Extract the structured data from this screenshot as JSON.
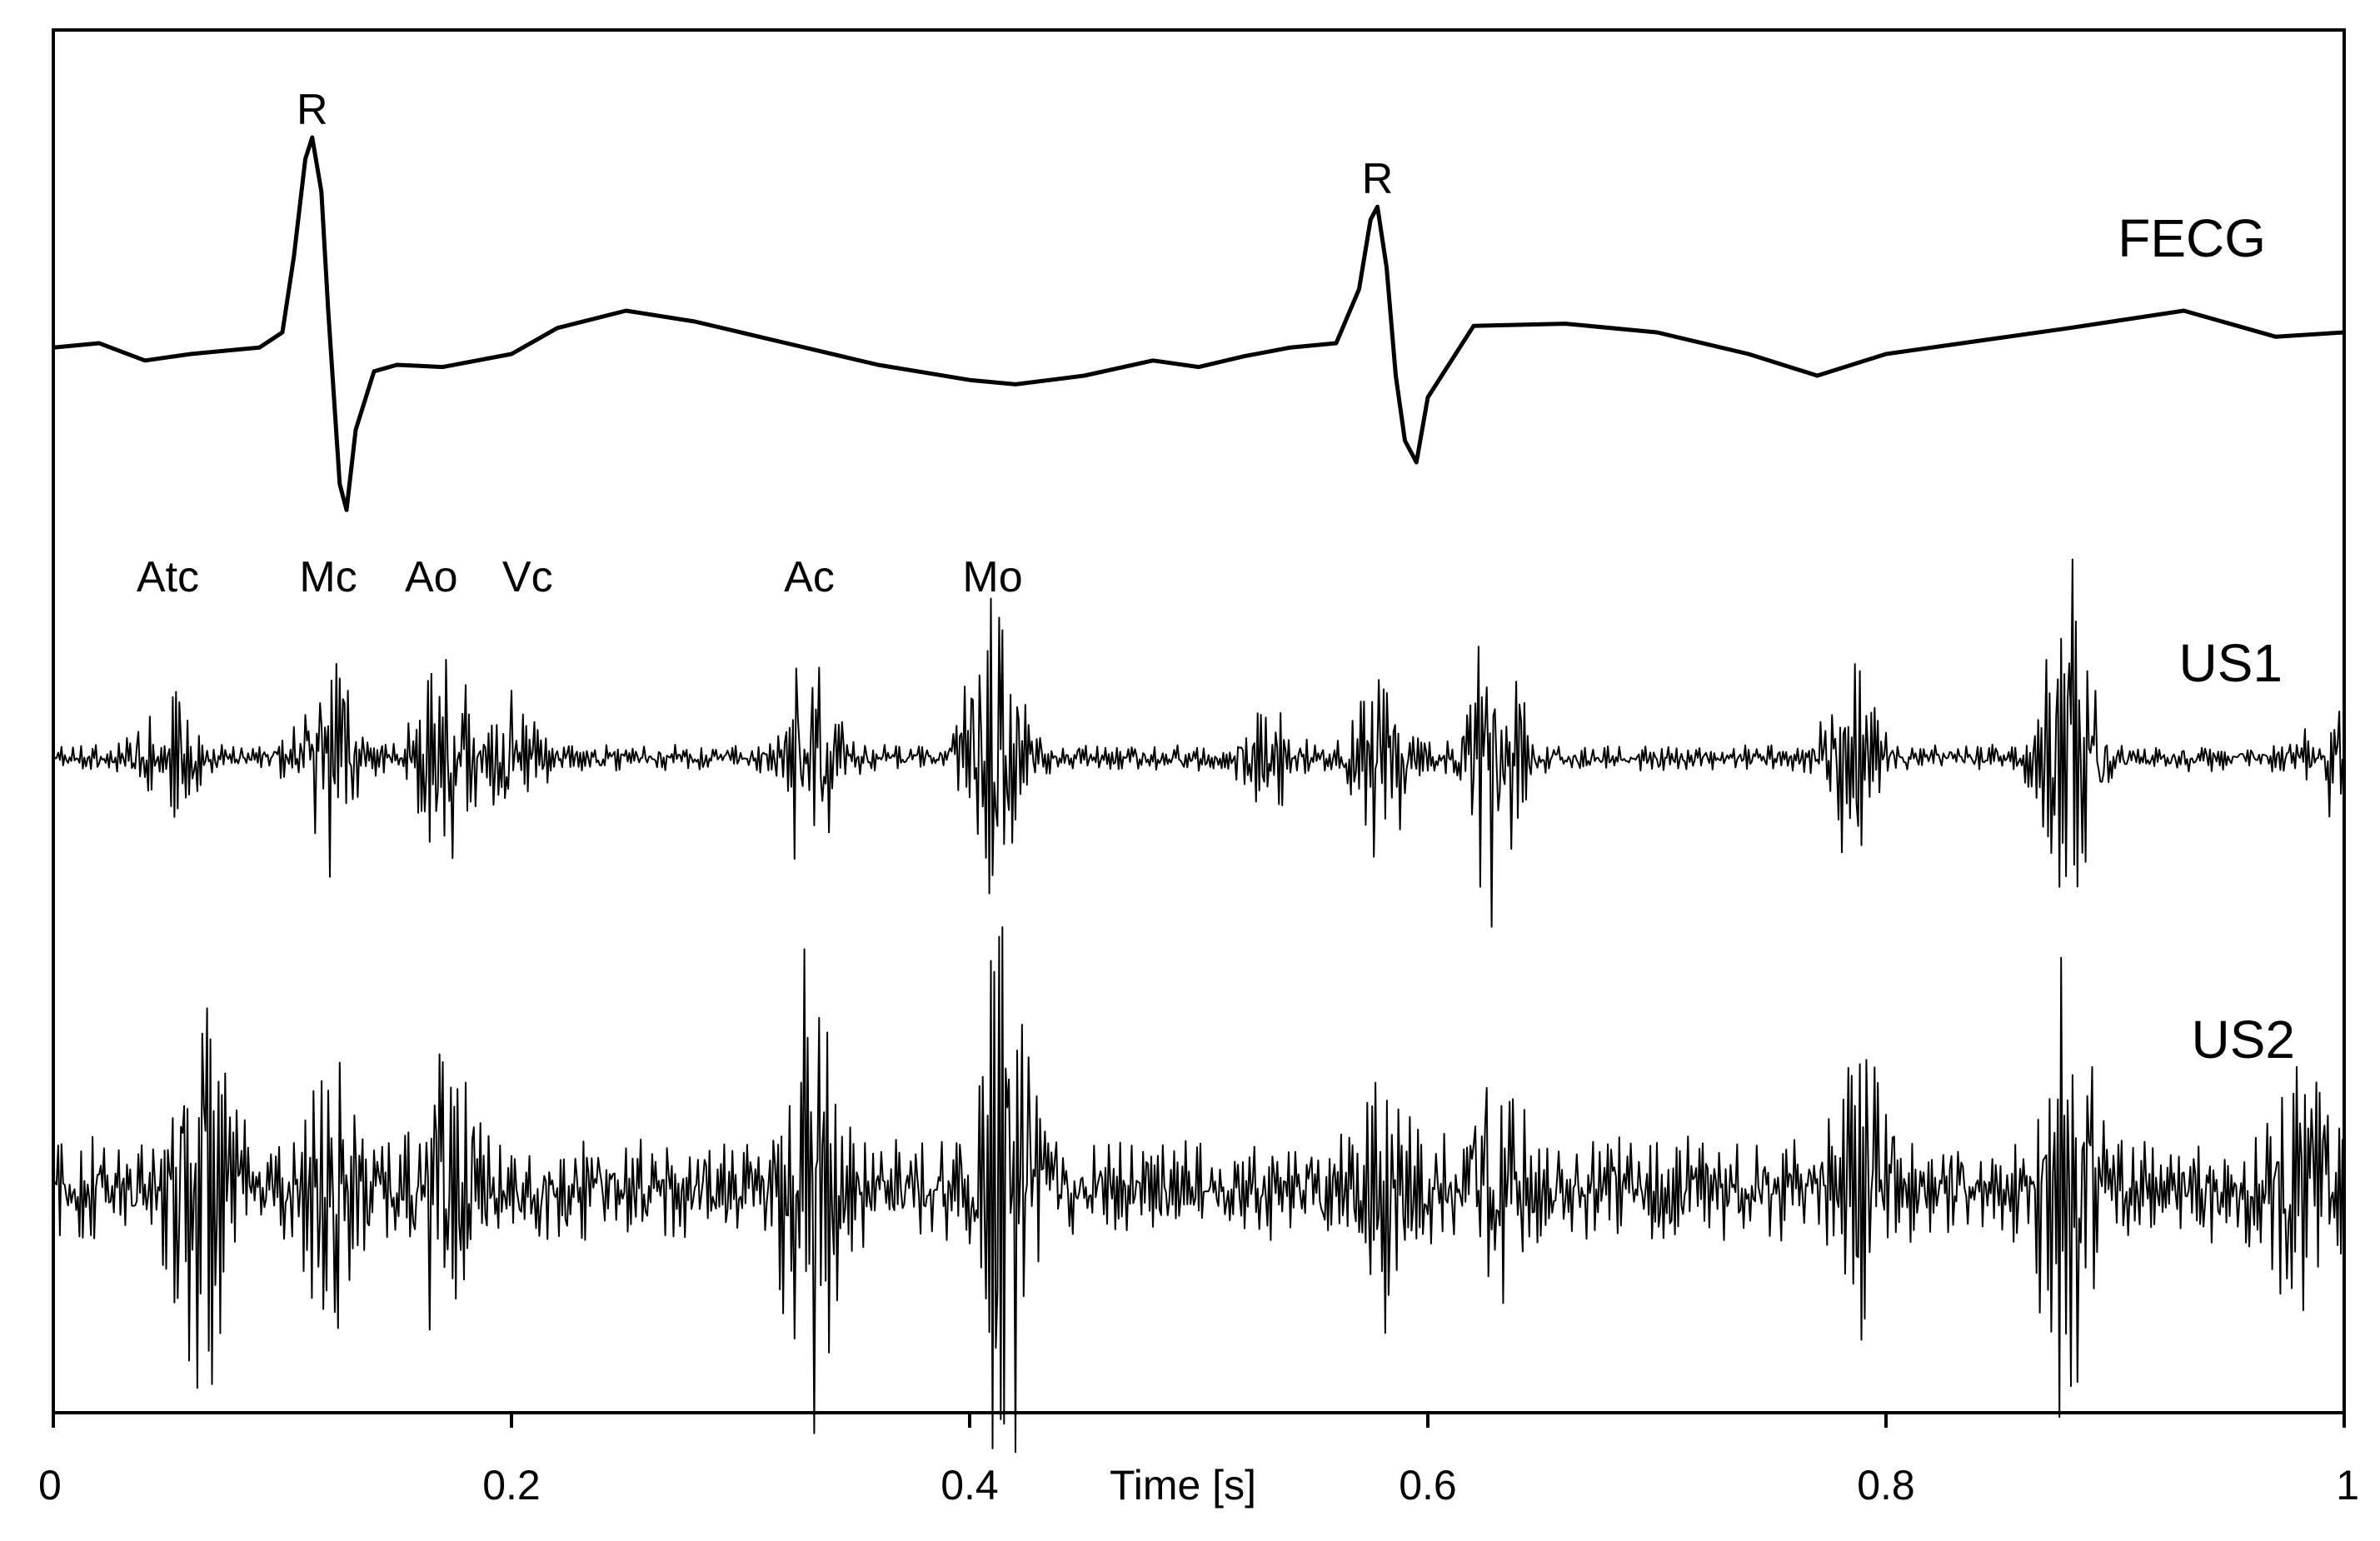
{
  "chart_data": {
    "type": "line",
    "title": "",
    "xlabel": "Time [s]",
    "ylabel": "",
    "xlim": [
      0,
      1
    ],
    "xticks": [
      0,
      0.2,
      0.4,
      0.6,
      0.8,
      1
    ],
    "xtick_labels": [
      "0",
      "0.2",
      "0.4",
      "0.6",
      "0.8",
      "1"
    ],
    "grid": false,
    "series": [
      {
        "name": "FECG",
        "x": [
          0,
          0.02,
          0.04,
          0.06,
          0.08,
          0.09,
          0.1,
          0.105,
          0.11,
          0.113,
          0.117,
          0.12,
          0.125,
          0.128,
          0.132,
          0.14,
          0.15,
          0.17,
          0.2,
          0.22,
          0.25,
          0.28,
          0.32,
          0.36,
          0.4,
          0.42,
          0.45,
          0.48,
          0.5,
          0.52,
          0.54,
          0.56,
          0.57,
          0.575,
          0.578,
          0.582,
          0.586,
          0.59,
          0.595,
          0.6,
          0.62,
          0.66,
          0.7,
          0.74,
          0.77,
          0.8,
          0.84,
          0.88,
          0.93,
          0.97,
          1.0
        ],
        "y": [
          0.03,
          0.05,
          -0.03,
          0.0,
          0.02,
          0.03,
          0.1,
          0.45,
          0.9,
          1.0,
          0.75,
          0.2,
          -0.6,
          -0.72,
          -0.35,
          -0.08,
          -0.05,
          -0.06,
          0.0,
          0.12,
          0.2,
          0.15,
          0.05,
          -0.05,
          -0.12,
          -0.14,
          -0.1,
          -0.03,
          -0.06,
          -0.01,
          0.03,
          0.05,
          0.3,
          0.62,
          0.68,
          0.4,
          -0.1,
          -0.4,
          -0.5,
          -0.2,
          0.13,
          0.14,
          0.1,
          0.0,
          -0.1,
          0.0,
          0.06,
          0.12,
          0.2,
          0.08,
          0.1
        ]
      },
      {
        "name": "US1",
        "bursts": [
          {
            "t": 0.05,
            "amp": 0.35
          },
          {
            "t": 0.12,
            "amp": 0.6
          },
          {
            "t": 0.17,
            "amp": 0.55
          },
          {
            "t": 0.2,
            "amp": 0.3
          },
          {
            "t": 0.33,
            "amp": 0.55
          },
          {
            "t": 0.41,
            "amp": 0.85
          },
          {
            "t": 0.53,
            "amp": 0.2
          },
          {
            "t": 0.58,
            "amp": 0.45
          },
          {
            "t": 0.63,
            "amp": 0.75
          },
          {
            "t": 0.785,
            "amp": 0.5
          },
          {
            "t": 0.88,
            "amp": 1.0
          },
          {
            "t": 0.995,
            "amp": 0.2
          }
        ],
        "noise": 0.06
      },
      {
        "name": "US2",
        "bursts": [
          {
            "t": 0.065,
            "amp": 0.65
          },
          {
            "t": 0.12,
            "amp": 0.5
          },
          {
            "t": 0.17,
            "amp": 0.45
          },
          {
            "t": 0.33,
            "amp": 0.8
          },
          {
            "t": 0.415,
            "amp": 1.0
          },
          {
            "t": 0.58,
            "amp": 0.35
          },
          {
            "t": 0.63,
            "amp": 0.35
          },
          {
            "t": 0.79,
            "amp": 0.5
          },
          {
            "t": 0.88,
            "amp": 0.85
          },
          {
            "t": 0.98,
            "amp": 0.4
          }
        ],
        "noise": 0.2
      }
    ],
    "annotations": [
      {
        "text": "R",
        "x": 0.113,
        "series": "FECG",
        "y": 1.0
      },
      {
        "text": "R",
        "x": 0.578,
        "series": "FECG",
        "y": 0.68
      },
      {
        "text": "Atc",
        "x": 0.05
      },
      {
        "text": "Mc",
        "x": 0.12
      },
      {
        "text": "Ao",
        "x": 0.165
      },
      {
        "text": "Vc",
        "x": 0.207
      },
      {
        "text": "Ac",
        "x": 0.33
      },
      {
        "text": "Mo",
        "x": 0.41
      }
    ]
  }
}
